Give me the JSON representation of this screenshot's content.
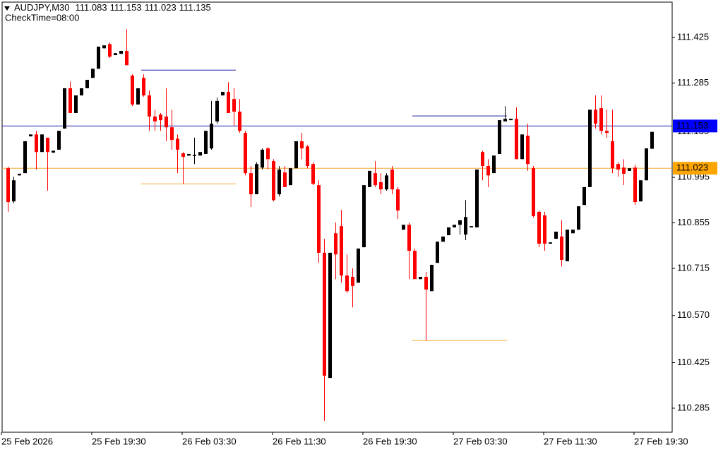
{
  "chart_data": {
    "type": "candlestick",
    "symbol": "AUDJPY,M30",
    "quote": [
      111.083,
      111.153,
      111.023,
      111.135
    ],
    "subtitle": "CheckTime=08:00",
    "categories": [
      "25 Feb 2026",
      null,
      null,
      null,
      null,
      null,
      null,
      null,
      null,
      null,
      null,
      null,
      null,
      null,
      null,
      null,
      "25 Feb 19:30",
      null,
      null,
      null,
      null,
      null,
      null,
      null,
      null,
      null,
      null,
      null,
      null,
      null,
      null,
      null,
      "26 Feb 03:30",
      null,
      null,
      null,
      null,
      null,
      null,
      null,
      null,
      null,
      null,
      null,
      null,
      null,
      null,
      null,
      "26 Feb 11:30",
      null,
      null,
      null,
      null,
      null,
      null,
      null,
      null,
      null,
      null,
      null,
      null,
      null,
      null,
      null,
      "26 Feb 19:30",
      null,
      null,
      null,
      null,
      null,
      null,
      null,
      null,
      null,
      null,
      null,
      null,
      null,
      null,
      null,
      "27 Feb 03:30",
      null,
      null,
      null,
      null,
      null,
      null,
      null,
      null,
      null,
      null,
      null,
      null,
      null,
      null,
      null,
      "27 Feb 11:30",
      null,
      null,
      null,
      null,
      null,
      null,
      null,
      null,
      null,
      null,
      null,
      null,
      null,
      null,
      null,
      "27 Feb 19:30",
      null,
      null
    ],
    "open": [
      111.023,
      110.921,
      111.001,
      111.008,
      111.121,
      111.127,
      111.073,
      111.117,
      111.071,
      111.08,
      111.145,
      111.269,
      111.193,
      111.247,
      111.269,
      111.301,
      111.329,
      111.392,
      111.405,
      111.371,
      111.375,
      111.384,
      111.308,
      111.219,
      111.301,
      111.247,
      111.182,
      111.188,
      111.182,
      111.149,
      111.114,
      111.069,
      111.062,
      111.064,
      111.062,
      111.067,
      111.084,
      111.167,
      111.247,
      111.258,
      111.236,
      111.197,
      111.132,
      111.008,
      110.943,
      111.025,
      111.084,
      111.045,
      110.943,
      111.01,
      110.971,
      111.023,
      111.106,
      111.09,
      111.036,
      110.971,
      110.763,
      110.378,
      110.823,
      110.845,
      110.693,
      110.689,
      110.671,
      110.78,
      110.965,
      111.008,
      110.98,
      110.958,
      111.019,
      110.958,
      110.834,
      110.849,
      110.769,
      110.682,
      110.689,
      110.645,
      110.732,
      110.797,
      110.817,
      110.841,
      110.849,
      110.819,
      110.841,
      110.841,
      111.073,
      111.03,
      111.008,
      111.067,
      111.167,
      111.171,
      111.175,
      111.051,
      111.123,
      111.023,
      110.889,
      110.878,
      110.791,
      110.806,
      110.813,
      110.737,
      110.823,
      110.834,
      110.91,
      110.965,
      111.203,
      111.208,
      111.138,
      111.106,
      111.036,
      111.025,
      111.015,
      111.025,
      110.921,
      110.986,
      111.083
    ],
    "high": [
      111.028,
      110.997,
      111.006,
      111.106,
      111.127,
      111.138,
      111.127,
      111.117,
      111.077,
      111.138,
      111.269,
      111.29,
      111.247,
      111.269,
      111.295,
      111.329,
      111.397,
      111.401,
      111.41,
      111.377,
      111.384,
      111.451,
      111.312,
      111.269,
      111.312,
      111.262,
      111.203,
      111.193,
      111.269,
      111.203,
      111.127,
      111.073,
      111.067,
      111.117,
      111.073,
      111.138,
      111.23,
      111.24,
      111.258,
      111.288,
      111.269,
      111.236,
      111.138,
      111.03,
      111.041,
      111.084,
      111.088,
      111.051,
      111.03,
      111.03,
      111.023,
      111.106,
      111.132,
      111.095,
      111.041,
      110.986,
      110.806,
      110.763,
      110.856,
      110.895,
      110.758,
      110.715,
      110.776,
      110.971,
      111.015,
      111.045,
      111.008,
      111.008,
      111.03,
      110.965,
      110.849,
      110.856,
      110.776,
      110.689,
      110.704,
      110.726,
      110.797,
      110.813,
      110.841,
      110.849,
      110.863,
      110.925,
      110.845,
      111.019,
      111.077,
      111.051,
      111.062,
      111.171,
      111.214,
      111.175,
      111.21,
      111.127,
      111.16,
      111.03,
      110.893,
      110.889,
      110.795,
      110.828,
      110.863,
      110.834,
      110.834,
      110.906,
      110.965,
      111.203,
      111.247,
      111.247,
      111.203,
      111.203,
      111.041,
      111.051,
      111.023,
      111.034,
      110.986,
      111.084,
      111.135
    ],
    "low": [
      110.889,
      110.915,
      111.001,
      111.008,
      111.121,
      111.019,
      111.073,
      110.954,
      111.071,
      111.08,
      111.145,
      111.193,
      111.193,
      111.247,
      111.269,
      111.301,
      111.329,
      111.392,
      111.362,
      111.371,
      111.375,
      111.34,
      111.214,
      111.219,
      111.243,
      111.138,
      111.138,
      111.138,
      111.106,
      111.08,
      111.008,
      110.975,
      111.062,
      111.036,
      111.062,
      111.067,
      111.08,
      111.16,
      111.247,
      111.193,
      111.154,
      111.132,
      111.001,
      110.904,
      110.943,
      111.019,
      111.019,
      110.921,
      110.936,
      110.965,
      110.971,
      111.023,
      111.051,
      111.023,
      110.971,
      110.732,
      110.246,
      110.378,
      110.682,
      110.671,
      110.639,
      110.595,
      110.671,
      110.78,
      110.965,
      110.965,
      110.943,
      110.954,
      110.943,
      110.867,
      110.834,
      110.682,
      110.682,
      110.682,
      110.493,
      110.645,
      110.732,
      110.797,
      110.817,
      110.841,
      110.819,
      110.802,
      110.841,
      110.841,
      110.986,
      110.965,
      111.008,
      111.067,
      111.167,
      111.171,
      111.051,
      111.051,
      111.015,
      110.871,
      110.78,
      110.769,
      110.791,
      110.806,
      110.721,
      110.737,
      110.823,
      110.834,
      110.91,
      110.965,
      111.145,
      111.127,
      111.117,
      111.008,
      110.997,
      110.971,
      111.015,
      110.91,
      110.921,
      110.986,
      111.083
    ],
    "close": [
      110.919,
      110.986,
      111.006,
      111.106,
      111.127,
      111.073,
      111.127,
      111.073,
      111.077,
      111.138,
      111.269,
      111.193,
      111.247,
      111.269,
      111.295,
      111.329,
      111.397,
      111.401,
      111.366,
      111.377,
      111.384,
      111.34,
      111.219,
      111.269,
      111.247,
      111.182,
      111.167,
      111.171,
      111.149,
      111.11,
      111.08,
      111.058,
      111.067,
      111.064,
      111.073,
      111.138,
      111.16,
      111.23,
      111.258,
      111.193,
      111.197,
      111.138,
      111.008,
      110.943,
      111.036,
      111.08,
      111.051,
      110.925,
      111.019,
      110.965,
      111.023,
      111.106,
      111.084,
      111.03,
      110.975,
      110.763,
      110.385,
      110.763,
      110.758,
      110.693,
      110.645,
      110.661,
      110.776,
      110.971,
      111.015,
      110.971,
      110.958,
      111.001,
      110.958,
      110.893,
      110.849,
      110.769,
      110.682,
      110.689,
      110.65,
      110.726,
      110.797,
      110.813,
      110.841,
      110.849,
      110.863,
      110.873,
      110.845,
      111.019,
      111.03,
      111.001,
      111.062,
      111.171,
      111.175,
      111.175,
      111.051,
      111.127,
      111.036,
      110.876,
      110.791,
      110.791,
      110.795,
      110.828,
      110.741,
      110.834,
      110.834,
      110.906,
      110.965,
      111.203,
      111.16,
      111.138,
      111.132,
      111.023,
      111.019,
      111.006,
      111.023,
      110.919,
      110.986,
      111.084,
      111.135
    ],
    "up_color": "#000000",
    "down_color": "#ff0000",
    "ylim": [
      110.211,
      111.534
    ],
    "yticks": [
      111.425,
      111.285,
      110.995,
      110.855,
      110.715,
      {
        "value": 110.57,
        "label": "110.570"
      },
      110.425,
      110.285
    ],
    "bid": 111.135,
    "levels": [
      {
        "value": 111.153,
        "line_color": "#1c1ca8",
        "tag_color": "#0000ff"
      },
      {
        "value": 111.023,
        "line_color": "#f0a830",
        "tag_color": "#ffa500"
      }
    ],
    "segments": [
      {
        "value": 111.325,
        "from": 24,
        "to": 40,
        "color": "#1c1ca8"
      },
      {
        "value": 110.975,
        "from": 24,
        "to": 40,
        "color": "#f0a830"
      },
      {
        "value": 111.184,
        "from": 72,
        "to": 88,
        "color": "#1c1ca8"
      },
      {
        "value": 110.493,
        "from": 72,
        "to": 88,
        "color": "#f0a830"
      }
    ]
  }
}
